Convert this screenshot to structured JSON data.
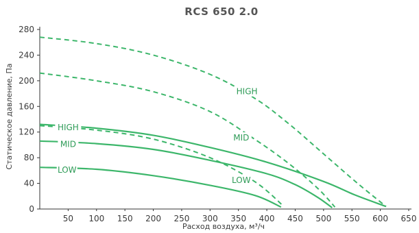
{
  "chart_data": {
    "type": "line",
    "title": "RCS 650 2.0",
    "xlabel": "Расход воздуха, м³/ч",
    "ylabel": "Статическое давление, Па",
    "xlim": [
      0,
      650
    ],
    "ylim": [
      0,
      280
    ],
    "xticks": [
      50,
      100,
      150,
      200,
      250,
      300,
      350,
      400,
      450,
      500,
      550,
      600,
      650
    ],
    "yticks": [
      0,
      40,
      80,
      120,
      160,
      200,
      240,
      280
    ],
    "grid": false,
    "legend": "none",
    "series": [
      {
        "name": "HIGH",
        "style": "solid",
        "color": "#3cb66a",
        "points": [
          [
            0,
            132
          ],
          [
            100,
            126
          ],
          [
            200,
            115
          ],
          [
            300,
            96
          ],
          [
            400,
            73
          ],
          [
            500,
            43
          ],
          [
            555,
            22
          ],
          [
            610,
            4
          ]
        ],
        "label_at": [
          50,
          126
        ]
      },
      {
        "name": "MID",
        "style": "solid",
        "color": "#3cb66a",
        "points": [
          [
            0,
            106
          ],
          [
            100,
            102
          ],
          [
            200,
            93
          ],
          [
            300,
            76
          ],
          [
            400,
            55
          ],
          [
            450,
            38
          ],
          [
            490,
            18
          ],
          [
            515,
            2
          ]
        ],
        "label_at": [
          50,
          100
        ]
      },
      {
        "name": "LOW",
        "style": "solid",
        "color": "#3cb66a",
        "points": [
          [
            0,
            65
          ],
          [
            100,
            62
          ],
          [
            200,
            52
          ],
          [
            300,
            37
          ],
          [
            380,
            21
          ],
          [
            425,
            3
          ]
        ],
        "label_at": [
          48,
          60
        ]
      },
      {
        "name": "HIGH",
        "style": "dashed",
        "color": "#3cb66a",
        "points": [
          [
            0,
            268
          ],
          [
            100,
            258
          ],
          [
            200,
            240
          ],
          [
            300,
            210
          ],
          [
            380,
            172
          ],
          [
            440,
            132
          ],
          [
            500,
            86
          ],
          [
            560,
            40
          ],
          [
            610,
            4
          ]
        ],
        "label_at": [
          365,
          182
        ]
      },
      {
        "name": "MID",
        "style": "dashed",
        "color": "#3cb66a",
        "points": [
          [
            0,
            212
          ],
          [
            100,
            200
          ],
          [
            200,
            183
          ],
          [
            300,
            152
          ],
          [
            380,
            108
          ],
          [
            440,
            70
          ],
          [
            490,
            32
          ],
          [
            520,
            3
          ]
        ],
        "label_at": [
          355,
          110
        ]
      },
      {
        "name": "LOW",
        "style": "dashed",
        "color": "#3cb66a",
        "points": [
          [
            0,
            130
          ],
          [
            100,
            123
          ],
          [
            200,
            109
          ],
          [
            300,
            80
          ],
          [
            380,
            42
          ],
          [
            430,
            4
          ]
        ],
        "label_at": [
          355,
          44
        ]
      }
    ]
  }
}
